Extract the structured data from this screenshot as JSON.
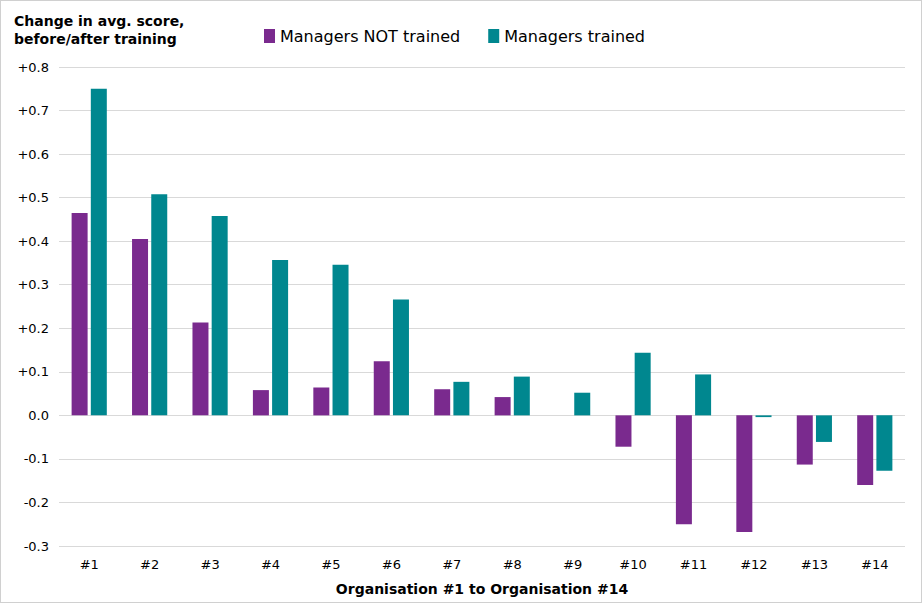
{
  "chart_data": {
    "type": "bar",
    "title": "Change in avg. score,\nbefore/after training",
    "xlabel": "Organisation #1 to Organisation #14",
    "categories": [
      "#1",
      "#2",
      "#3",
      "#4",
      "#5",
      "#6",
      "#7",
      "#8",
      "#9",
      "#10",
      "#11",
      "#12",
      "#13",
      "#14"
    ],
    "series": [
      {
        "name": "Managers NOT trained",
        "color": "#7a2a8e",
        "values": [
          0.465,
          0.405,
          0.213,
          0.058,
          0.064,
          0.124,
          0.06,
          0.042,
          0,
          -0.072,
          -0.25,
          -0.268,
          -0.113,
          -0.16
        ]
      },
      {
        "name": "Managers trained",
        "color": "#00878f",
        "values": [
          0.75,
          0.508,
          0.458,
          0.357,
          0.346,
          0.266,
          0.077,
          0.089,
          0.052,
          0.144,
          0.094,
          -0.004,
          -0.061,
          -0.127
        ]
      }
    ],
    "ylim": [
      -0.3,
      0.8
    ],
    "yticks": [
      {
        "value": -0.3,
        "label": "-0.3"
      },
      {
        "value": -0.2,
        "label": "-0.2"
      },
      {
        "value": -0.1,
        "label": "-0.1"
      },
      {
        "value": 0,
        "label": "0.0"
      },
      {
        "value": 0.1,
        "label": "+0.1"
      },
      {
        "value": 0.2,
        "label": "+0.2"
      },
      {
        "value": 0.3,
        "label": "+0.3"
      },
      {
        "value": 0.4,
        "label": "+0.4"
      },
      {
        "value": 0.5,
        "label": "+0.5"
      },
      {
        "value": 0.6,
        "label": "+0.6"
      },
      {
        "value": 0.7,
        "label": "+0.7"
      },
      {
        "value": 0.8,
        "label": "+0.8"
      }
    ],
    "grid": true,
    "legend": "top"
  }
}
